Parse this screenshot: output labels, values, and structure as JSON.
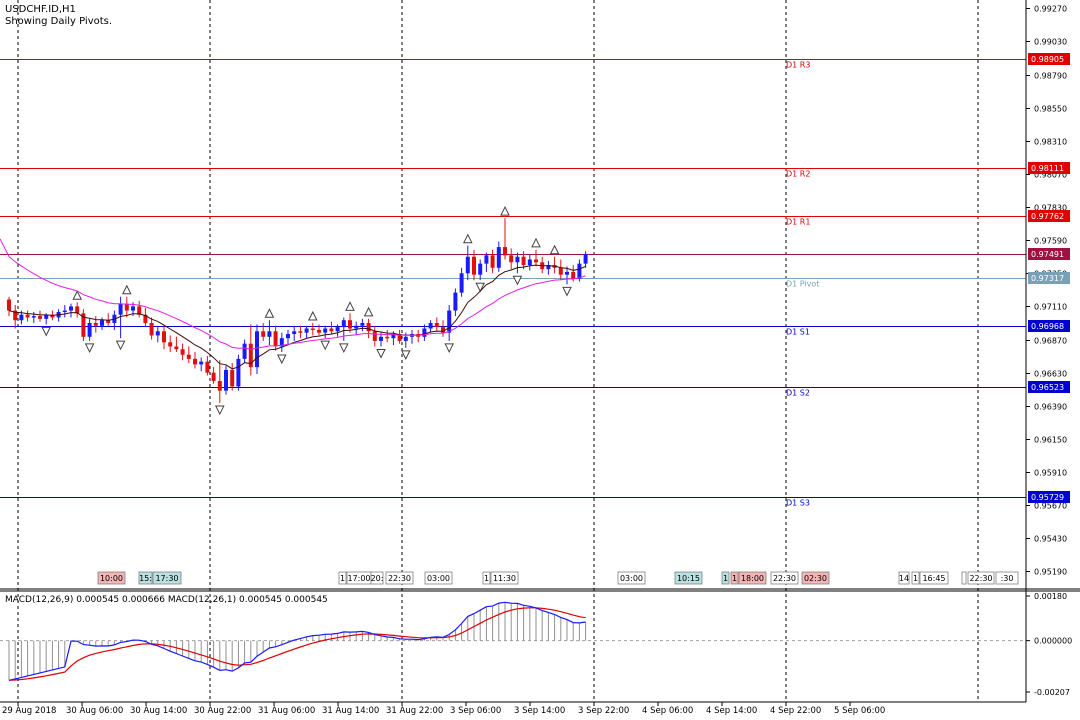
{
  "header": {
    "symbol_timeframe": "USDCHF.ID,H1",
    "subtitle": "Showing Daily Pivots."
  },
  "colors": {
    "bull": "#1a1aff",
    "bear": "#e01010",
    "resistance": "#e00000",
    "support": "#0000d0",
    "pivot": "#7aa0b8",
    "ma_fast": "#3b0a0a",
    "ma_slow": "#e020e0",
    "macd_line": "#1a1aff",
    "signal_line": "#e00000",
    "fractal": "#404040"
  },
  "price_axis": {
    "ticks": [
      "0.99270",
      "0.99030",
      "0.98790",
      "0.98550",
      "0.98310",
      "0.98070",
      "0.97830",
      "0.97590",
      "0.97350",
      "0.97110",
      "0.96870",
      "0.96630",
      "0.96390",
      "0.96150",
      "0.95910",
      "0.95670",
      "0.95430",
      "0.95190"
    ]
  },
  "pivot_levels": [
    {
      "label": "D1 R3",
      "value": "0.98905",
      "kind": "resistance"
    },
    {
      "label": "D1 R2",
      "value": "0.98111",
      "kind": "resistance"
    },
    {
      "label": "D1 R1",
      "value": "0.97762",
      "kind": "resistance"
    },
    {
      "label": "",
      "value": "0.97491",
      "kind": "current"
    },
    {
      "label": "D1 Pivot",
      "value": "0.97317",
      "kind": "pivot"
    },
    {
      "label": "D1 S1",
      "value": "0.96968",
      "kind": "support"
    },
    {
      "label": "D1 S2",
      "value": "0.96523",
      "kind": "support"
    },
    {
      "label": "D1 S3",
      "value": "0.95729",
      "kind": "support"
    }
  ],
  "time_labels": [
    {
      "text": "10:00",
      "kind": "bear"
    },
    {
      "text": "15:",
      "kind": "pivot"
    },
    {
      "text": "17:30",
      "kind": "pivot"
    },
    {
      "text": "1",
      "kind": "plain"
    },
    {
      "text": "17:00",
      "kind": "plain"
    },
    {
      "text": "20:",
      "kind": "plain"
    },
    {
      "text": "22:30",
      "kind": "plain"
    },
    {
      "text": "03:00",
      "kind": "plain"
    },
    {
      "text": "1",
      "kind": "plain"
    },
    {
      "text": "11:30",
      "kind": "plain"
    },
    {
      "text": "03:00",
      "kind": "plain"
    },
    {
      "text": "10:15",
      "kind": "pivot"
    },
    {
      "text": "1",
      "kind": "pivot"
    },
    {
      "text": "1",
      "kind": "bear"
    },
    {
      "text": "18:00",
      "kind": "bear"
    },
    {
      "text": "22:30",
      "kind": "plain"
    },
    {
      "text": "02:30",
      "kind": "bear"
    },
    {
      "text": "14",
      "kind": "plain"
    },
    {
      "text": "1",
      "kind": "plain"
    },
    {
      "text": "16:45",
      "kind": "plain"
    },
    {
      "text": "",
      "kind": "plain"
    },
    {
      "text": "22:30",
      "kind": "plain"
    },
    {
      "text": ":30",
      "kind": "plain"
    }
  ],
  "macd": {
    "label": "MACD(12,26,9) 0.000545 0.000666 MACD(12,26,1) 0.000545 0.000545",
    "ticks": [
      "0.00180",
      "0.000000",
      "-0.00207"
    ],
    "ymax": 0.0018,
    "ymin": -0.00207
  },
  "x_axis": {
    "labels": [
      "29 Aug 2018",
      "30 Aug 06:00",
      "30 Aug 14:00",
      "30 Aug 22:00",
      "31 Aug 06:00",
      "31 Aug 14:00",
      "31 Aug 22:00",
      "3 Sep 06:00",
      "3 Sep 14:00",
      "3 Sep 22:00",
      "4 Sep 06:00",
      "4 Sep 14:00",
      "4 Sep 22:00",
      "5 Sep 06:00"
    ]
  },
  "price_range": {
    "min": 0.9507,
    "max": 0.9933
  },
  "chart_data": {
    "type": "candlestick",
    "symbol": "USDCHF.ID",
    "timeframe": "H1",
    "ohlc": [
      [
        0.9716,
        0.9718,
        0.9704,
        0.9708
      ],
      [
        0.9708,
        0.9712,
        0.9695,
        0.9701
      ],
      [
        0.9701,
        0.9708,
        0.9698,
        0.9705
      ],
      [
        0.9705,
        0.9708,
        0.97,
        0.9703
      ],
      [
        0.9703,
        0.9707,
        0.9699,
        0.9704
      ],
      [
        0.9704,
        0.9708,
        0.97,
        0.9702
      ],
      [
        0.9702,
        0.9706,
        0.9698,
        0.9705
      ],
      [
        0.9705,
        0.9708,
        0.9701,
        0.9703
      ],
      [
        0.9703,
        0.9709,
        0.97,
        0.9707
      ],
      [
        0.9707,
        0.9712,
        0.9703,
        0.9708
      ],
      [
        0.9708,
        0.9713,
        0.9703,
        0.9711
      ],
      [
        0.9711,
        0.9714,
        0.9703,
        0.9706
      ],
      [
        0.9706,
        0.9709,
        0.9686,
        0.9689
      ],
      [
        0.9689,
        0.9702,
        0.9686,
        0.9699
      ],
      [
        0.9699,
        0.9704,
        0.9692,
        0.9697
      ],
      [
        0.9697,
        0.9703,
        0.9694,
        0.9701
      ],
      [
        0.9701,
        0.9706,
        0.9697,
        0.9699
      ],
      [
        0.9699,
        0.9708,
        0.9694,
        0.9705
      ],
      [
        0.9705,
        0.9718,
        0.9688,
        0.9713
      ],
      [
        0.9713,
        0.9718,
        0.9703,
        0.9708
      ],
      [
        0.9708,
        0.9714,
        0.9704,
        0.9711
      ],
      [
        0.9711,
        0.9715,
        0.9703,
        0.9705
      ],
      [
        0.9705,
        0.971,
        0.9696,
        0.9699
      ],
      [
        0.9699,
        0.9703,
        0.9687,
        0.969
      ],
      [
        0.969,
        0.9696,
        0.9685,
        0.9693
      ],
      [
        0.9693,
        0.9697,
        0.968,
        0.9685
      ],
      [
        0.9685,
        0.969,
        0.9678,
        0.9682
      ],
      [
        0.9682,
        0.9689,
        0.9678,
        0.968
      ],
      [
        0.968,
        0.9684,
        0.9672,
        0.9676
      ],
      [
        0.9676,
        0.9682,
        0.967,
        0.9673
      ],
      [
        0.9673,
        0.9678,
        0.9666,
        0.9669
      ],
      [
        0.9669,
        0.9674,
        0.9664,
        0.9671
      ],
      [
        0.9671,
        0.9675,
        0.9661,
        0.9663
      ],
      [
        0.9663,
        0.9667,
        0.9655,
        0.9657
      ],
      [
        0.9657,
        0.9672,
        0.9641,
        0.965
      ],
      [
        0.965,
        0.9668,
        0.9647,
        0.9665
      ],
      [
        0.9665,
        0.967,
        0.965,
        0.9653
      ],
      [
        0.9653,
        0.9676,
        0.965,
        0.9673
      ],
      [
        0.9673,
        0.9687,
        0.967,
        0.9684
      ],
      [
        0.9684,
        0.9698,
        0.9661,
        0.9667
      ],
      [
        0.9667,
        0.9698,
        0.9662,
        0.9693
      ],
      [
        0.9693,
        0.9699,
        0.9686,
        0.9689
      ],
      [
        0.9689,
        0.9701,
        0.9683,
        0.9693
      ],
      [
        0.9693,
        0.9697,
        0.9679,
        0.9682
      ],
      [
        0.9682,
        0.9692,
        0.9678,
        0.9688
      ],
      [
        0.9688,
        0.9694,
        0.9683,
        0.9691
      ],
      [
        0.9691,
        0.9697,
        0.9686,
        0.9693
      ],
      [
        0.9693,
        0.9697,
        0.9688,
        0.9692
      ],
      [
        0.9692,
        0.9697,
        0.9688,
        0.9695
      ],
      [
        0.9695,
        0.9699,
        0.969,
        0.9694
      ],
      [
        0.9694,
        0.9698,
        0.969,
        0.9692
      ],
      [
        0.9692,
        0.9697,
        0.9688,
        0.9695
      ],
      [
        0.9695,
        0.97,
        0.9691,
        0.9693
      ],
      [
        0.9693,
        0.9698,
        0.9689,
        0.9696
      ],
      [
        0.9696,
        0.9703,
        0.9686,
        0.9701
      ],
      [
        0.9701,
        0.9706,
        0.9692,
        0.9695
      ],
      [
        0.9695,
        0.97,
        0.969,
        0.9697
      ],
      [
        0.9697,
        0.9702,
        0.9693,
        0.9699
      ],
      [
        0.9699,
        0.9702,
        0.9688,
        0.9693
      ],
      [
        0.9693,
        0.9697,
        0.9682,
        0.9686
      ],
      [
        0.9686,
        0.9692,
        0.9682,
        0.9689
      ],
      [
        0.9689,
        0.9694,
        0.9685,
        0.9688
      ],
      [
        0.9688,
        0.9693,
        0.9683,
        0.9691
      ],
      [
        0.9691,
        0.9694,
        0.9684,
        0.9686
      ],
      [
        0.9686,
        0.9692,
        0.9681,
        0.9689
      ],
      [
        0.9689,
        0.9694,
        0.9684,
        0.9691
      ],
      [
        0.9691,
        0.9694,
        0.9685,
        0.9689
      ],
      [
        0.9689,
        0.9698,
        0.9686,
        0.9695
      ],
      [
        0.9695,
        0.9701,
        0.9692,
        0.9699
      ],
      [
        0.9699,
        0.9703,
        0.9693,
        0.9696
      ],
      [
        0.9696,
        0.9701,
        0.9689,
        0.9692
      ],
      [
        0.9692,
        0.9712,
        0.9686,
        0.9708
      ],
      [
        0.9708,
        0.9724,
        0.9704,
        0.9721
      ],
      [
        0.9721,
        0.9739,
        0.9718,
        0.9735
      ],
      [
        0.9735,
        0.9755,
        0.973,
        0.9747
      ],
      [
        0.9747,
        0.9752,
        0.973,
        0.9734
      ],
      [
        0.9734,
        0.9745,
        0.973,
        0.9742
      ],
      [
        0.9742,
        0.975,
        0.9736,
        0.9748
      ],
      [
        0.9748,
        0.9752,
        0.9735,
        0.9739
      ],
      [
        0.9739,
        0.9758,
        0.9736,
        0.9754
      ],
      [
        0.9754,
        0.9775,
        0.9745,
        0.9748
      ],
      [
        0.9748,
        0.9753,
        0.9738,
        0.9743
      ],
      [
        0.9743,
        0.975,
        0.9735,
        0.9747
      ],
      [
        0.9747,
        0.9751,
        0.9738,
        0.9741
      ],
      [
        0.9741,
        0.9749,
        0.9737,
        0.9745
      ],
      [
        0.9745,
        0.9752,
        0.974,
        0.9743
      ],
      [
        0.9743,
        0.9747,
        0.9735,
        0.9738
      ],
      [
        0.9738,
        0.9744,
        0.9734,
        0.9741
      ],
      [
        0.9741,
        0.9747,
        0.9735,
        0.9739
      ],
      [
        0.9739,
        0.9745,
        0.973,
        0.9734
      ],
      [
        0.9734,
        0.974,
        0.9727,
        0.9736
      ],
      [
        0.9736,
        0.9741,
        0.9729,
        0.9731
      ],
      [
        0.9731,
        0.9745,
        0.9729,
        0.9742
      ],
      [
        0.9742,
        0.9751,
        0.9739,
        0.9749
      ]
    ],
    "levels": {
      "R3": 0.98905,
      "R2": 0.98111,
      "R1": 0.97762,
      "Pivot": 0.97317,
      "S1": 0.96968,
      "S2": 0.96523,
      "S3": 0.95729,
      "Bid": 0.97491
    }
  }
}
